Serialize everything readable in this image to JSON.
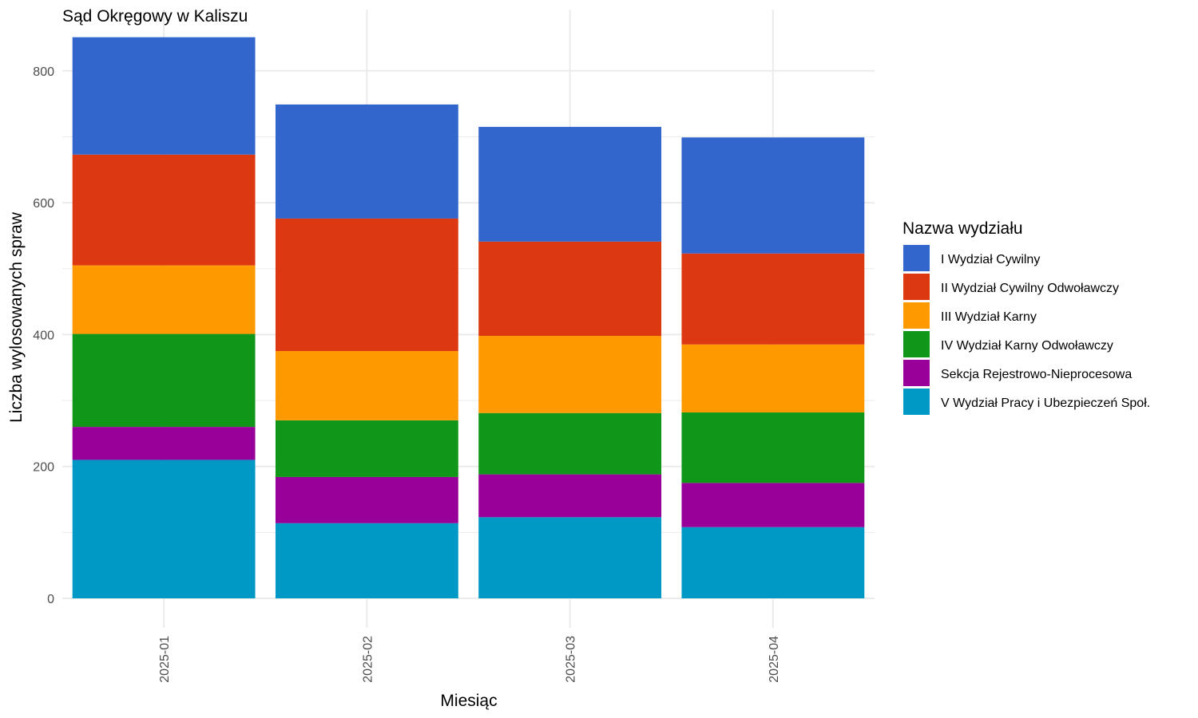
{
  "chart_data": {
    "type": "bar",
    "stacked": true,
    "title": "Sąd Okręgowy w Kaliszu",
    "xlabel": "Miesiąc",
    "ylabel": "Liczba wylosowanych spraw",
    "ylim": [
      0,
      860
    ],
    "yticks": [
      0,
      200,
      400,
      600,
      800
    ],
    "grid": true,
    "legend_title": "Nazwa wydziału",
    "legend_position": "right",
    "categories": [
      "2025-01",
      "2025-02",
      "2025-03",
      "2025-04"
    ],
    "series": [
      {
        "name": "V Wydział Pracy i Ubezpieczeń Społ.",
        "color": "#0099C6",
        "values": [
          210,
          114,
          123,
          108
        ]
      },
      {
        "name": "Sekcja Rejestrowo-Nieprocesowa",
        "color": "#990099",
        "values": [
          50,
          70,
          65,
          67
        ]
      },
      {
        "name": "IV Wydział Karny Odwoławczy",
        "color": "#109618",
        "values": [
          141,
          86,
          93,
          107
        ]
      },
      {
        "name": "III Wydział Karny",
        "color": "#FF9900",
        "values": [
          104,
          105,
          117,
          103
        ]
      },
      {
        "name": "II Wydział Cywilny Odwoławczy",
        "color": "#DC3912",
        "values": [
          168,
          201,
          143,
          138
        ]
      },
      {
        "name": "I Wydział Cywilny",
        "color": "#3366CC",
        "values": [
          178,
          173,
          174,
          176
        ]
      }
    ]
  }
}
